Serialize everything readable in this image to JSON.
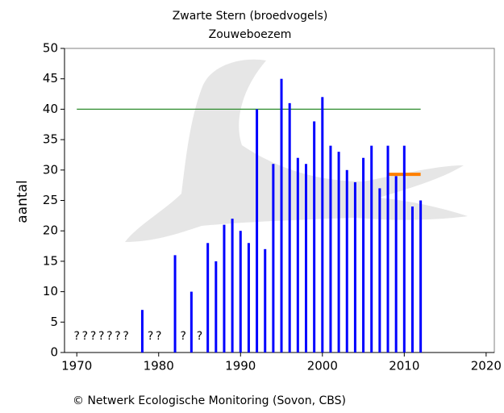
{
  "chart_data": {
    "type": "bar",
    "title": "Zwarte Stern (broedvogels)",
    "subtitle": "Zouweboezem",
    "y_label": "aantal",
    "footer": "© Netwerk Ecologische Monitoring (Sovon, CBS)",
    "x": [
      1978,
      1982,
      1984,
      1986,
      1987,
      1988,
      1989,
      1990,
      1991,
      1992,
      1993,
      1994,
      1995,
      1996,
      1997,
      1998,
      1999,
      2000,
      2001,
      2002,
      2003,
      2004,
      2005,
      2006,
      2007,
      2008,
      2009,
      2010,
      2011,
      2012
    ],
    "values": [
      7,
      16,
      10,
      18,
      15,
      21,
      22,
      20,
      18,
      40,
      17,
      31,
      45,
      41,
      32,
      31,
      38,
      42,
      34,
      33,
      30,
      28,
      32,
      34,
      27,
      34,
      29,
      34,
      24,
      25
    ],
    "color": "#0000ff",
    "unknown": {
      "label": "?",
      "x": [
        1970,
        1971,
        1972,
        1973,
        1974,
        1975,
        1976,
        1979,
        1980,
        1983,
        1985
      ]
    },
    "reference_lines": [
      {
        "value": 40,
        "x": [
          1970,
          2012
        ],
        "color": "#2e8b2e"
      },
      {
        "value": 29.3,
        "x": [
          2008,
          2012
        ],
        "color": "#ff7f00"
      }
    ],
    "xlim": [
      1968.5,
      2021
    ],
    "ylim": [
      0,
      50
    ],
    "xticks": [
      1970,
      1980,
      1990,
      2000,
      2010,
      2020
    ],
    "yticks": [
      0,
      5,
      10,
      15,
      20,
      25,
      30,
      35,
      40,
      45,
      50
    ]
  }
}
